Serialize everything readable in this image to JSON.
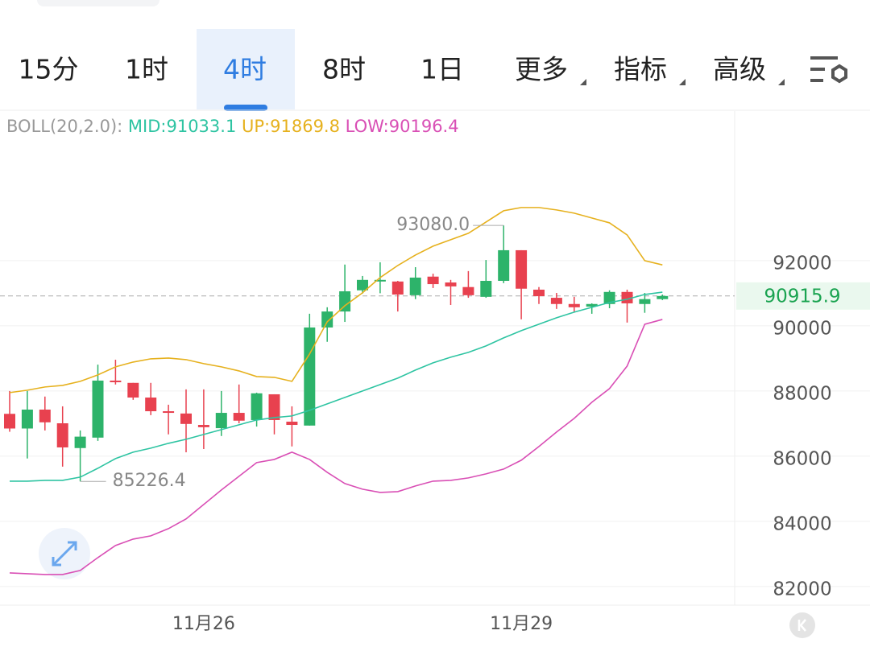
{
  "tabs": [
    "15分",
    "1时",
    "4时",
    "8时",
    "1日",
    "更多",
    "指标",
    "高级"
  ],
  "chart_data": {
    "type": "candlestick",
    "indicator": "BOLL(20,2.0):",
    "categories": [
      null,
      null,
      null,
      null,
      null,
      null,
      null,
      null,
      null,
      null,
      null,
      "11月26",
      null,
      null,
      null,
      null,
      null,
      null,
      null,
      null,
      null,
      null,
      null,
      null,
      null,
      null,
      null,
      null,
      null,
      "11月29",
      null,
      null,
      null,
      null,
      null,
      null,
      null,
      null
    ],
    "open": [
      87300,
      86850,
      87430,
      87010,
      86250,
      86570,
      88320,
      88250,
      87800,
      87380,
      87310,
      86960,
      86860,
      87330,
      87110,
      87900,
      87060,
      86940,
      89950,
      90440,
      91090,
      91360,
      91360,
      90940,
      91510,
      91330,
      91190,
      90890,
      91380,
      92320,
      91110,
      90860,
      90670,
      90590,
      90670,
      91040,
      90670,
      90820
    ],
    "high": [
      88000,
      88000,
      87830,
      87530,
      86790,
      88810,
      88960,
      88250,
      88250,
      87580,
      88050,
      88050,
      88000,
      88200,
      87950,
      87900,
      87530,
      90370,
      90570,
      91880,
      91530,
      91950,
      91380,
      91800,
      91600,
      91410,
      91680,
      92020,
      93080,
      92320,
      91190,
      91010,
      90890,
      90690,
      91090,
      91110,
      91010,
      90960
    ],
    "low": [
      86750,
      85930,
      86790,
      85680,
      85226.4,
      86470,
      88200,
      87730,
      87260,
      86670,
      86120,
      86220,
      86620,
      87010,
      86910,
      86670,
      86300,
      86940,
      89510,
      90120,
      90990,
      91000,
      90440,
      90820,
      91160,
      90640,
      90860,
      90860,
      91310,
      90200,
      90670,
      90520,
      90420,
      90370,
      90540,
      90100,
      90400,
      90790
    ],
    "close": [
      86850,
      87430,
      87040,
      86270,
      86600,
      88320,
      88270,
      87800,
      87380,
      87330,
      86990,
      86890,
      87330,
      87090,
      87930,
      87110,
      86960,
      89950,
      90440,
      91060,
      91410,
      91410,
      90960,
      91480,
      91280,
      91210,
      90940,
      91380,
      92320,
      91140,
      90910,
      90670,
      90570,
      90670,
      91040,
      90690,
      90820,
      90915.9
    ],
    "up_color": "#2db36a",
    "down_color": "#e8414f",
    "overlays": [
      {
        "label": "MID:91033.1",
        "color": "#2ec4a2",
        "values": [
          85235,
          85235,
          85259,
          85259,
          85358,
          85630,
          85926,
          86124,
          86247,
          86395,
          86519,
          86667,
          86815,
          86963,
          87111,
          87185,
          87235,
          87408,
          87605,
          87803,
          88000,
          88198,
          88395,
          88642,
          88864,
          89037,
          89185,
          89383,
          89630,
          89852,
          90049,
          90247,
          90420,
          90568,
          90716,
          90815,
          90963,
          91033.1
        ]
      },
      {
        "label": "UP:91869.8",
        "color": "#e6b11e",
        "values": [
          87951,
          88025,
          88124,
          88173,
          88297,
          88494,
          88741,
          88889,
          88988,
          89012,
          88963,
          88840,
          88741,
          88617,
          88444,
          88420,
          88297,
          89136,
          90124,
          90617,
          91012,
          91481,
          91852,
          92173,
          92444,
          92642,
          92839,
          93185,
          93531,
          93630,
          93630,
          93556,
          93457,
          93309,
          93160,
          92790,
          92000,
          91869.8
        ]
      },
      {
        "label": "LOW:90196.4",
        "color": "#d94fb5",
        "values": [
          82420,
          82395,
          82371,
          82371,
          82494,
          82889,
          83260,
          83457,
          83556,
          83778,
          84075,
          84519,
          84963,
          85383,
          85803,
          85901,
          86124,
          85901,
          85506,
          85161,
          84988,
          84889,
          84914,
          85087,
          85235,
          85259,
          85334,
          85457,
          85605,
          85877,
          86297,
          86741,
          87161,
          87654,
          88074,
          88765,
          90049,
          90196.4
        ]
      }
    ],
    "annotations": [
      {
        "text": "93080.0",
        "value": 93080,
        "index": 28
      },
      {
        "text": "85226.4",
        "value": 85226.4,
        "index": 4
      }
    ],
    "last_price": 90915.9,
    "ylim": [
      81430,
      96590
    ],
    "yticks": [
      82000,
      84000,
      86000,
      88000,
      90000,
      92000
    ],
    "grid": true
  }
}
